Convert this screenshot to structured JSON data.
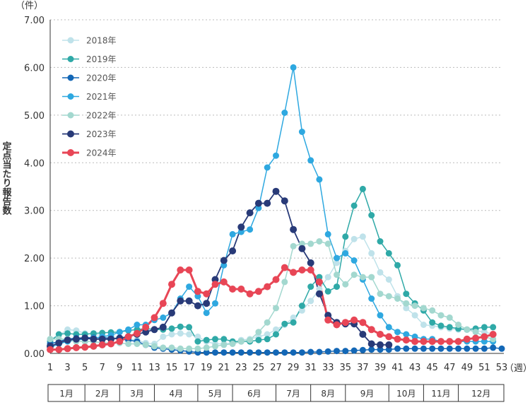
{
  "chart_data": {
    "type": "line",
    "y_unit": "（件）",
    "x_unit": "（週）",
    "ylabel": "定点当たり報告数",
    "ylim": [
      0,
      7
    ],
    "yticks": [
      "0.00",
      "1.00",
      "2.00",
      "3.00",
      "4.00",
      "5.00",
      "6.00",
      "7.00"
    ],
    "ytick_values": [
      0,
      1,
      2,
      3,
      4,
      5,
      6,
      7
    ],
    "xlim": [
      1,
      53
    ],
    "xticks": [
      1,
      3,
      5,
      7,
      9,
      11,
      13,
      15,
      17,
      19,
      21,
      23,
      25,
      27,
      29,
      31,
      33,
      35,
      37,
      39,
      41,
      43,
      45,
      47,
      49,
      51,
      53
    ],
    "grid": "horizontal dotted",
    "legend_position": "top-left",
    "months": [
      {
        "label": "1月",
        "start": 1,
        "end": 5
      },
      {
        "label": "2月",
        "start": 5,
        "end": 9
      },
      {
        "label": "3月",
        "start": 9,
        "end": 13
      },
      {
        "label": "4月",
        "start": 13,
        "end": 18
      },
      {
        "label": "5月",
        "start": 18,
        "end": 22
      },
      {
        "label": "6月",
        "start": 22,
        "end": 27
      },
      {
        "label": "7月",
        "start": 27,
        "end": 31
      },
      {
        "label": "8月",
        "start": 31,
        "end": 35
      },
      {
        "label": "9月",
        "start": 35,
        "end": 40
      },
      {
        "label": "10月",
        "start": 40,
        "end": 44
      },
      {
        "label": "11月",
        "start": 44,
        "end": 48
      },
      {
        "label": "12月",
        "start": 48,
        "end": 53
      }
    ],
    "series": [
      {
        "name": "2018年",
        "color": "#bfe2ea",
        "width": 1.5,
        "marker": 4.5,
        "values": [
          0.3,
          0.38,
          0.5,
          0.48,
          0.42,
          0.4,
          0.38,
          0.35,
          0.32,
          0.3,
          0.28,
          0.22,
          0.2,
          0.35,
          0.4,
          0.42,
          0.4,
          0.35,
          0.25,
          0.2,
          0.2,
          0.22,
          0.28,
          0.3,
          0.35,
          0.4,
          0.5,
          0.6,
          0.75,
          0.9,
          1.1,
          1.35,
          1.6,
          1.9,
          2.15,
          2.4,
          2.45,
          2.1,
          1.7,
          1.55,
          1.2,
          0.95,
          0.8,
          0.6,
          0.58,
          0.55,
          0.52,
          0.5,
          0.5,
          0.48,
          0.45,
          0.4
        ]
      },
      {
        "name": "2019年",
        "color": "#2fa9a7",
        "width": 1.5,
        "marker": 4.5,
        "values": [
          0.25,
          0.4,
          0.42,
          0.4,
          0.4,
          0.42,
          0.43,
          0.44,
          0.45,
          0.48,
          0.5,
          0.52,
          0.5,
          0.5,
          0.52,
          0.56,
          0.55,
          0.25,
          0.28,
          0.3,
          0.3,
          0.25,
          0.25,
          0.25,
          0.28,
          0.3,
          0.4,
          0.62,
          0.65,
          1.0,
          1.4,
          1.6,
          1.3,
          1.4,
          2.45,
          3.1,
          3.45,
          2.9,
          2.35,
          2.1,
          1.85,
          1.25,
          1.05,
          0.9,
          0.65,
          0.58,
          0.55,
          0.52,
          0.5,
          0.52,
          0.55,
          0.55
        ]
      },
      {
        "name": "2020年",
        "color": "#1367b6",
        "width": 1.5,
        "marker": 4.5,
        "values": [
          0.2,
          0.25,
          0.3,
          0.32,
          0.33,
          0.33,
          0.33,
          0.32,
          0.3,
          0.28,
          0.25,
          0.18,
          0.12,
          0.1,
          0.08,
          0.06,
          0.04,
          0.02,
          0.02,
          0.02,
          0.02,
          0.02,
          0.02,
          0.02,
          0.02,
          0.02,
          0.02,
          0.02,
          0.02,
          0.02,
          0.03,
          0.03,
          0.04,
          0.05,
          0.05,
          0.06,
          0.07,
          0.08,
          0.08,
          0.08,
          0.1,
          0.1,
          0.1,
          0.1,
          0.1,
          0.1,
          0.1,
          0.1,
          0.1,
          0.1,
          0.1,
          0.12,
          0.1
        ]
      },
      {
        "name": "2021年",
        "color": "#2ea8e0",
        "width": 1.5,
        "marker": 4.5,
        "values": [
          0.12,
          0.2,
          0.25,
          0.28,
          0.3,
          0.32,
          0.35,
          0.38,
          0.45,
          0.5,
          0.6,
          0.6,
          0.7,
          0.75,
          0.85,
          1.15,
          1.4,
          1.2,
          0.85,
          1.05,
          1.85,
          2.5,
          2.55,
          2.6,
          3.05,
          3.9,
          4.15,
          5.05,
          6.0,
          4.65,
          4.05,
          3.65,
          2.5,
          2.0,
          2.1,
          1.95,
          1.55,
          1.15,
          0.8,
          0.55,
          0.45,
          0.4,
          0.35,
          0.3,
          0.3,
          0.25,
          0.25,
          0.25,
          0.25,
          0.25,
          0.25,
          0.25
        ]
      },
      {
        "name": "2022年",
        "color": "#a3d8cf",
        "width": 1.5,
        "marker": 4.5,
        "values": [
          0.3,
          0.3,
          0.3,
          0.25,
          0.25,
          0.25,
          0.22,
          0.22,
          0.22,
          0.2,
          0.2,
          0.18,
          0.15,
          0.12,
          0.12,
          0.1,
          0.1,
          0.1,
          0.12,
          0.15,
          0.18,
          0.2,
          0.25,
          0.28,
          0.45,
          0.65,
          0.95,
          1.5,
          2.25,
          2.3,
          2.3,
          2.35,
          2.3,
          1.65,
          1.45,
          1.65,
          1.6,
          1.6,
          1.25,
          1.2,
          1.15,
          1.05,
          1.0,
          0.95,
          0.9,
          0.8,
          0.75,
          0.6,
          0.5,
          0.45,
          0.35,
          0.3
        ]
      },
      {
        "name": "2023年",
        "color": "#283a78",
        "width": 1.8,
        "marker": 5,
        "values": [
          0.15,
          0.22,
          0.28,
          0.3,
          0.32,
          0.3,
          0.3,
          0.3,
          0.32,
          0.35,
          0.4,
          0.45,
          0.5,
          0.55,
          0.85,
          1.1,
          1.1,
          1.0,
          1.05,
          1.55,
          1.95,
          2.15,
          2.65,
          2.95,
          3.15,
          3.15,
          3.4,
          3.2,
          2.6,
          2.2,
          1.9,
          1.25,
          0.8,
          0.65,
          0.62,
          0.62,
          0.4,
          0.2,
          0.18,
          0.18,
          null,
          null,
          null,
          null,
          null,
          null,
          null,
          null,
          null,
          null,
          null,
          null
        ]
      },
      {
        "name": "2024年",
        "color": "#e84656",
        "width": 3,
        "marker": 5,
        "values": [
          0.08,
          0.08,
          0.1,
          0.12,
          0.13,
          0.15,
          0.18,
          0.2,
          0.25,
          0.35,
          0.42,
          0.55,
          0.75,
          1.05,
          1.45,
          1.75,
          1.75,
          1.3,
          1.25,
          1.45,
          1.5,
          1.35,
          1.35,
          1.25,
          1.3,
          1.4,
          1.55,
          1.8,
          1.7,
          1.75,
          1.75,
          1.5,
          0.7,
          0.6,
          0.65,
          0.7,
          0.65,
          0.5,
          0.4,
          0.35,
          0.3,
          0.28,
          0.25,
          0.25,
          0.25,
          0.25,
          0.25,
          0.25,
          0.3,
          0.32,
          0.35,
          0.4
        ]
      }
    ]
  }
}
